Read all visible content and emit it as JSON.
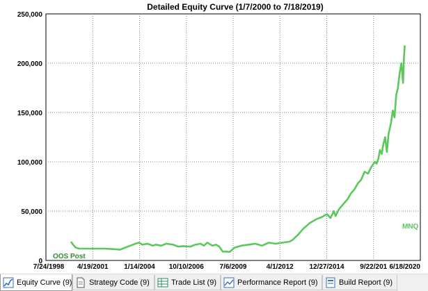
{
  "chart_data": {
    "type": "line",
    "title": "Detailed Equity Curve (1/7/2000 to 7/18/2019)",
    "x_tick_labels": [
      "7/24/1998",
      "4/19/2001",
      "1/14/2004",
      "10/10/2006",
      "7/6/2009",
      "4/1/2012",
      "12/27/2014",
      "9/22/201",
      "6/18/2020"
    ],
    "y_tick_labels": [
      "0",
      "50,000",
      "100,000",
      "150,000",
      "200,000",
      "250,000"
    ],
    "ylim": [
      0,
      250000
    ],
    "x_range": [
      1998.56,
      2020.46
    ],
    "grid": true,
    "line_color": "#5bc85b",
    "annotations": {
      "oos": "OOS Post",
      "symbol": "MNQ"
    },
    "series": [
      {
        "x": [
          2000.02,
          2000.15,
          2000.3,
          2000.5,
          2001.0,
          2001.5,
          2002.0,
          2002.5,
          2002.9,
          2003.2,
          2003.5,
          2003.8,
          2004.0,
          2004.2,
          2004.5,
          2004.8,
          2005.0,
          2005.3,
          2005.6,
          2006.0,
          2006.3,
          2006.6,
          2007.0,
          2007.3,
          2007.6,
          2007.8,
          2008.0,
          2008.3,
          2008.5,
          2008.7,
          2008.9,
          2009.1,
          2009.3,
          2009.6,
          2010.0,
          2010.4,
          2010.8,
          2011.2,
          2011.6,
          2012.0,
          2012.4,
          2012.8,
          2013.0,
          2013.3,
          2013.6,
          2014.0,
          2014.4,
          2014.7,
          2015.0,
          2015.2,
          2015.4,
          2015.5,
          2015.7,
          2016.0,
          2016.2,
          2016.4,
          2016.6,
          2016.8,
          2017.0,
          2017.2,
          2017.4,
          2017.6,
          2017.8,
          2017.9,
          2018.0,
          2018.1,
          2018.2,
          2018.3,
          2018.4,
          2018.5,
          2018.6,
          2018.75,
          2018.85,
          2018.95,
          2019.05,
          2019.15,
          2019.25,
          2019.35,
          2019.45,
          2019.5,
          2019.55
        ],
        "y": [
          19000,
          16000,
          13000,
          12000,
          12000,
          12000,
          12000,
          11500,
          11000,
          13000,
          15000,
          17000,
          18000,
          16000,
          17000,
          15000,
          16000,
          15000,
          17000,
          16000,
          14000,
          14500,
          14000,
          16000,
          17000,
          15000,
          18000,
          15000,
          16000,
          14000,
          9000,
          9000,
          8500,
          13000,
          15000,
          16000,
          17000,
          15000,
          18000,
          17000,
          18000,
          19000,
          21000,
          26000,
          32000,
          38000,
          42000,
          44000,
          47000,
          43000,
          50000,
          45000,
          52000,
          58000,
          62000,
          68000,
          72000,
          78000,
          82000,
          90000,
          88000,
          95000,
          100000,
          98000,
          103000,
          112000,
          108000,
          118000,
          125000,
          110000,
          128000,
          140000,
          152000,
          145000,
          168000,
          175000,
          190000,
          200000,
          180000,
          205000,
          218000
        ]
      }
    ]
  },
  "tabs": [
    {
      "label": "Equity Curve (9)",
      "icon": "equity-curve-icon",
      "active": true
    },
    {
      "label": "Strategy Code (9)",
      "icon": "document-icon",
      "active": false
    },
    {
      "label": "Trade List (9)",
      "icon": "table-icon",
      "active": false
    },
    {
      "label": "Performance Report (9)",
      "icon": "report-chart-icon",
      "active": false
    },
    {
      "label": "Build Report (9)",
      "icon": "build-report-icon",
      "active": false
    }
  ]
}
